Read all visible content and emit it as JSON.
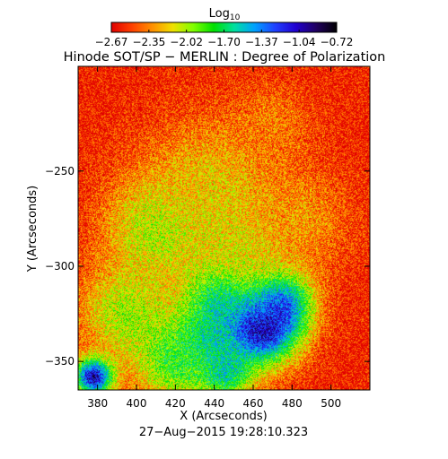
{
  "chart_data": {
    "type": "heatmap",
    "title": "Hinode SOT/SP − MERLIN : Degree of Polarization",
    "colorbar": {
      "label_base": "Log",
      "label_sub": "10",
      "tick_labels": [
        "−2.67",
        "−2.35",
        "−2.02",
        "−1.70",
        "−1.37",
        "−1.04",
        "−0.72"
      ],
      "range": [
        -2.67,
        -0.72
      ],
      "colormap": [
        "#e00000",
        "#ff4000",
        "#ff9000",
        "#f0e000",
        "#80ff00",
        "#00e000",
        "#00e0a0",
        "#00a0ff",
        "#2040ff",
        "#2000d0",
        "#200060",
        "#000000"
      ]
    },
    "xlabel": "X (Arcseconds)",
    "ylabel": "Y (Arcseconds)",
    "xlim": [
      370,
      520
    ],
    "ylim": [
      -365,
      -195
    ],
    "x_ticks": [
      380,
      400,
      420,
      440,
      460,
      480,
      500
    ],
    "y_ticks": [
      -250,
      -300,
      -350
    ],
    "subtitle": "27−Aug−2015 19:28:10.323",
    "background_value": -2.6,
    "features": [
      {
        "x": 462,
        "y": -330,
        "sigma": 15,
        "value": -0.75
      },
      {
        "x": 470,
        "y": -318,
        "sigma": 12,
        "value": -0.9
      },
      {
        "x": 445,
        "y": -315,
        "sigma": 13,
        "value": -1.25
      },
      {
        "x": 435,
        "y": -340,
        "sigma": 12,
        "value": -1.4
      },
      {
        "x": 445,
        "y": -355,
        "sigma": 10,
        "value": -1.5
      },
      {
        "x": 378,
        "y": -358,
        "sigma": 7,
        "value": -0.85
      },
      {
        "x": 412,
        "y": -280,
        "sigma": 20,
        "value": -1.95
      },
      {
        "x": 395,
        "y": -325,
        "sigma": 18,
        "value": -2.0
      },
      {
        "x": 440,
        "y": -255,
        "sigma": 25,
        "value": -2.2
      },
      {
        "x": 455,
        "y": -290,
        "sigma": 20,
        "value": -2.1
      },
      {
        "x": 485,
        "y": -275,
        "sigma": 18,
        "value": -2.3
      },
      {
        "x": 470,
        "y": -225,
        "sigma": 14,
        "value": -2.35
      },
      {
        "x": 420,
        "y": -350,
        "sigma": 15,
        "value": -1.8
      }
    ]
  }
}
